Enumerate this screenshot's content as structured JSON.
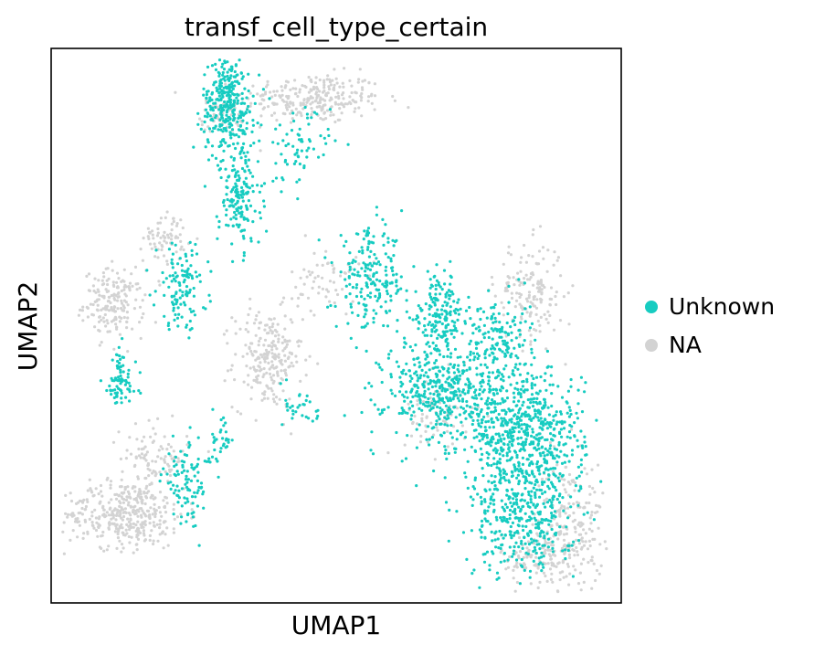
{
  "chart_data": {
    "type": "scatter",
    "title": "transf_cell_type_certain",
    "xlabel": "UMAP1",
    "ylabel": "UMAP2",
    "xlim": [
      0,
      100
    ],
    "ylim": [
      0,
      100
    ],
    "grid": false,
    "legend_position": "right",
    "ticks": "none",
    "series": [
      {
        "name": "NA",
        "color": "#d3d3d3",
        "clusters": [
          {
            "center": [
              46,
              91
            ],
            "spread": [
              8,
              3
            ],
            "n": 260
          },
          {
            "center": [
              55,
              104
            ],
            "spread": [
              3.5,
              3
            ],
            "n": 70
          },
          {
            "center": [
              30,
              88
            ],
            "spread": [
              2.5,
              2
            ],
            "n": 50
          },
          {
            "center": [
              11,
              54
            ],
            "spread": [
              3.5,
              4
            ],
            "n": 180
          },
          {
            "center": [
              20,
              66
            ],
            "spread": [
              2.5,
              3
            ],
            "n": 70
          },
          {
            "center": [
              38,
              44
            ],
            "spread": [
              4,
              6
            ],
            "n": 230
          },
          {
            "center": [
              13,
              16
            ],
            "spread": [
              7,
              4
            ],
            "n": 380
          },
          {
            "center": [
              18,
              26
            ],
            "spread": [
              4,
              4
            ],
            "n": 100
          },
          {
            "center": [
              84,
              56
            ],
            "spread": [
              4,
              6
            ],
            "n": 160
          },
          {
            "center": [
              68,
              34
            ],
            "spread": [
              4,
              5
            ],
            "n": 80
          },
          {
            "center": [
              91,
              14
            ],
            "spread": [
              4,
              8
            ],
            "n": 220
          },
          {
            "center": [
              85,
              8
            ],
            "spread": [
              4,
              3
            ],
            "n": 100
          },
          {
            "center": [
              48,
              58
            ],
            "spread": [
              4,
              4
            ],
            "n": 60
          }
        ]
      },
      {
        "name": "Unknown",
        "color": "#17ccc1",
        "clusters": [
          {
            "center": [
              31,
              90
            ],
            "spread": [
              3,
              6
            ],
            "n": 330
          },
          {
            "center": [
              33,
              73
            ],
            "spread": [
              2.5,
              6
            ],
            "n": 160
          },
          {
            "center": [
              43,
              82
            ],
            "spread": [
              4,
              5
            ],
            "n": 70
          },
          {
            "center": [
              23,
              57
            ],
            "spread": [
              3,
              5
            ],
            "n": 120
          },
          {
            "center": [
              12,
              40
            ],
            "spread": [
              2,
              4
            ],
            "n": 80
          },
          {
            "center": [
              24,
              22
            ],
            "spread": [
              3,
              5
            ],
            "n": 100
          },
          {
            "center": [
              56,
              58
            ],
            "spread": [
              4,
              6
            ],
            "n": 200
          },
          {
            "center": [
              68,
              52
            ],
            "spread": [
              3,
              5
            ],
            "n": 170
          },
          {
            "center": [
              69,
              38
            ],
            "spread": [
              7,
              6
            ],
            "n": 450
          },
          {
            "center": [
              83,
              30
            ],
            "spread": [
              7,
              8
            ],
            "n": 650
          },
          {
            "center": [
              83,
              15
            ],
            "spread": [
              6,
              7
            ],
            "n": 350
          },
          {
            "center": [
              78,
              48
            ],
            "spread": [
              4,
              5
            ],
            "n": 150
          },
          {
            "center": [
              44,
              35
            ],
            "spread": [
              2,
              3
            ],
            "n": 30
          },
          {
            "center": [
              30,
              30
            ],
            "spread": [
              1.5,
              3
            ],
            "n": 30
          }
        ]
      }
    ],
    "legend": [
      {
        "label": "Unknown",
        "color": "#17ccc1"
      },
      {
        "label": "NA",
        "color": "#d3d3d3"
      }
    ]
  }
}
